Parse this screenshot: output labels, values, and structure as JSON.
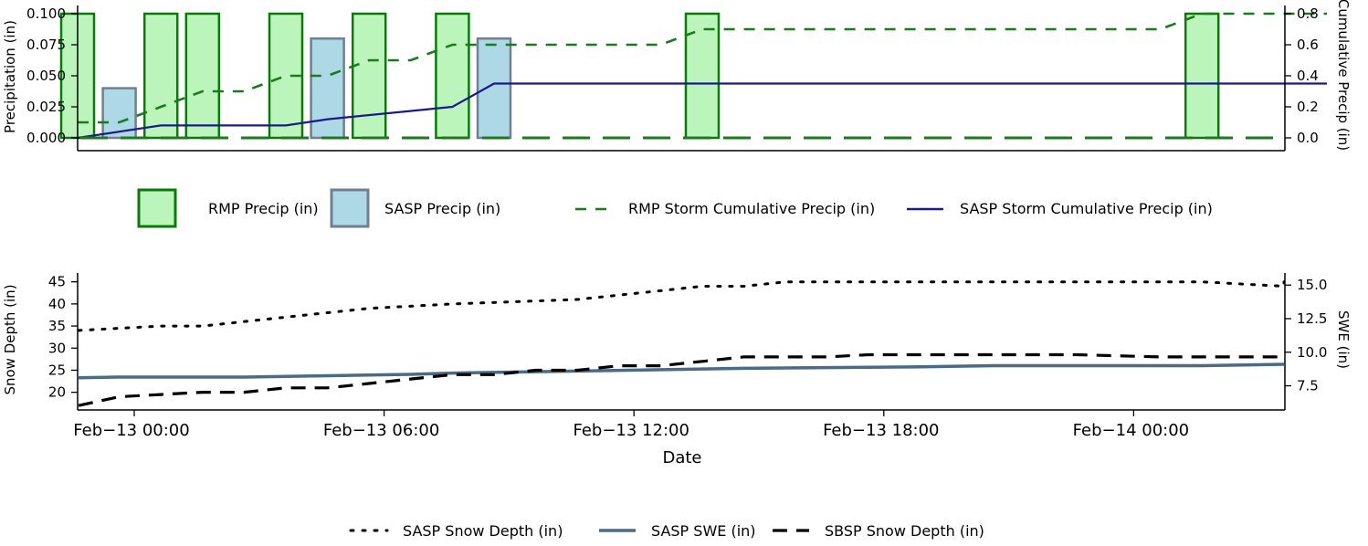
{
  "chart_data": [
    {
      "type": "bar",
      "xlabel": "",
      "ylabel": "Precipitation (in)",
      "y2label": "Cumulative Precip (in)",
      "ylim": [
        0,
        0.1
      ],
      "y2lim": [
        0,
        0.8
      ],
      "yticks": [
        "0.000",
        "0.025",
        "0.050",
        "0.075",
        "0.100"
      ],
      "y2ticks": [
        "0.0",
        "0.2",
        "0.4",
        "0.6",
        "0.8"
      ],
      "series": [
        {
          "name": "RMP Precip (in)",
          "kind": "bar",
          "color": "#90ee90",
          "edge": "#0b7a0b",
          "x": [
            "2026-02-13T00:00",
            "2026-02-13T02:00",
            "2026-02-13T03:00",
            "2026-02-13T05:00",
            "2026-02-13T07:00",
            "2026-02-13T09:00",
            "2026-02-13T15:00",
            "2026-02-14T03:00"
          ],
          "values": [
            0.1,
            0.1,
            0.1,
            0.1,
            0.1,
            0.1,
            0.1,
            0.1
          ]
        },
        {
          "name": "SASP Precip (in)",
          "kind": "bar",
          "color": "#add8e6",
          "edge": "#708090",
          "x": [
            "2026-02-13T01:00",
            "2026-02-13T06:00",
            "2026-02-13T10:00"
          ],
          "values": [
            0.04,
            0.08,
            0.08
          ]
        },
        {
          "name": "RMP Storm Cumulative Precip (in)",
          "kind": "line",
          "color": "#1b7a1b",
          "x": [
            "2026-02-13T00:00",
            "2026-02-13T01:00",
            "2026-02-13T02:00",
            "2026-02-13T03:00",
            "2026-02-13T04:00",
            "2026-02-13T05:00",
            "2026-02-13T06:00",
            "2026-02-13T07:00",
            "2026-02-13T08:00",
            "2026-02-13T09:00",
            "2026-02-13T10:00",
            "2026-02-13T14:00",
            "2026-02-13T15:00",
            "2026-02-14T02:00",
            "2026-02-14T03:00",
            "2026-02-14T06:00"
          ],
          "values": [
            0.1,
            0.1,
            0.2,
            0.3,
            0.3,
            0.4,
            0.4,
            0.5,
            0.5,
            0.6,
            0.6,
            0.6,
            0.7,
            0.7,
            0.8,
            0.8
          ]
        },
        {
          "name": "SASP Storm Cumulative Precip (in)",
          "kind": "line",
          "color": "#1a1a8a",
          "x": [
            "2026-02-13T00:00",
            "2026-02-13T01:00",
            "2026-02-13T02:00",
            "2026-02-13T05:00",
            "2026-02-13T06:00",
            "2026-02-13T09:00",
            "2026-02-13T10:00",
            "2026-02-14T06:00"
          ],
          "values": [
            0.0,
            0.04,
            0.08,
            0.08,
            0.12,
            0.2,
            0.35,
            0.35
          ]
        }
      ]
    },
    {
      "type": "line",
      "xlabel": "Date",
      "ylabel": "Snow Depth (in)",
      "y2label": "SWE (in)",
      "ylim": [
        16,
        47
      ],
      "y2lim": [
        5.7,
        15.9
      ],
      "yticks": [
        "20",
        "25",
        "30",
        "35",
        "40",
        "45"
      ],
      "y2ticks": [
        "7.5",
        "10.0",
        "12.5",
        "15.0"
      ],
      "xticks": [
        "Feb−13 00:00",
        "Feb−13 06:00",
        "Feb−13 12:00",
        "Feb−13 18:00",
        "Feb−14 00:00"
      ],
      "series": [
        {
          "name": "SASP Snow Depth (in)",
          "axis": "left",
          "color": "#000000",
          "x": [
            "2026-02-13T00:00",
            "2026-02-13T02:00",
            "2026-02-13T03:00",
            "2026-02-13T04:00",
            "2026-02-13T06:00",
            "2026-02-13T07:00",
            "2026-02-13T09:00",
            "2026-02-13T12:00",
            "2026-02-13T13:00",
            "2026-02-13T14:00",
            "2026-02-13T15:00",
            "2026-02-13T16:00",
            "2026-02-13T17:00",
            "2026-02-13T19:00",
            "2026-02-13T21:00",
            "2026-02-14T00:00",
            "2026-02-14T03:00",
            "2026-02-14T05:00",
            "2026-02-14T06:00"
          ],
          "values": [
            34,
            35,
            35,
            36,
            38,
            39,
            40,
            41,
            42,
            43,
            44,
            44,
            45,
            45,
            45,
            45,
            45,
            44,
            45
          ]
        },
        {
          "name": "SASP SWE (in)",
          "axis": "right",
          "color": "#4a6b86",
          "x": [
            "2026-02-13T00:00",
            "2026-02-13T01:00",
            "2026-02-13T04:00",
            "2026-02-13T06:00",
            "2026-02-13T08:00",
            "2026-02-13T09:00",
            "2026-02-13T12:00",
            "2026-02-13T16:00",
            "2026-02-13T20:00",
            "2026-02-13T22:00",
            "2026-02-14T00:00",
            "2026-02-14T03:00",
            "2026-02-14T06:00"
          ],
          "values": [
            8.1,
            8.15,
            8.15,
            8.25,
            8.35,
            8.45,
            8.6,
            8.8,
            8.9,
            9.0,
            9.0,
            9.0,
            9.1
          ]
        },
        {
          "name": "SBSP Snow Depth (in)",
          "axis": "left",
          "color": "#000000",
          "x": [
            "2026-02-13T00:00",
            "2026-02-13T01:00",
            "2026-02-13T02:00",
            "2026-02-13T03:00",
            "2026-02-13T04:00",
            "2026-02-13T05:00",
            "2026-02-13T06:00",
            "2026-02-13T07:00",
            "2026-02-13T08:00",
            "2026-02-13T09:00",
            "2026-02-13T10:00",
            "2026-02-13T11:00",
            "2026-02-13T12:00",
            "2026-02-13T13:00",
            "2026-02-13T14:00",
            "2026-02-13T15:00",
            "2026-02-13T16:00",
            "2026-02-13T17:00",
            "2026-02-13T18:00",
            "2026-02-13T19:00",
            "2026-02-13T20:00",
            "2026-02-13T21:00",
            "2026-02-13T22:00",
            "2026-02-13T23:00",
            "2026-02-14T00:00",
            "2026-02-14T02:00",
            "2026-02-14T04:00",
            "2026-02-14T06:00"
          ],
          "values": [
            17,
            19,
            19.5,
            20,
            20,
            21,
            21,
            22,
            23,
            24,
            24,
            25,
            25,
            26,
            26,
            27,
            28,
            28,
            28,
            28.5,
            28.5,
            28.5,
            28.5,
            28.5,
            28.5,
            28,
            28,
            28
          ]
        }
      ]
    }
  ]
}
